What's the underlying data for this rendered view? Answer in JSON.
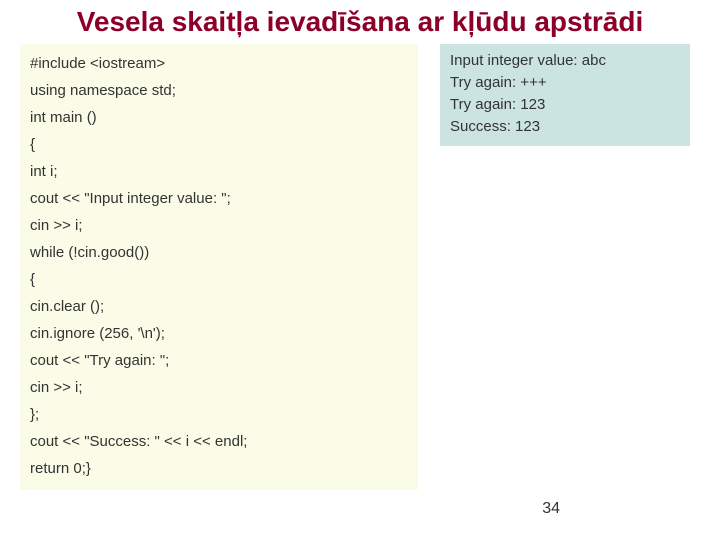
{
  "title": "Vesela skaitļa ievadīšana ar kļūdu apstrādi",
  "code": {
    "bg_color": "#fafce8",
    "text_color": "#333333",
    "font_size": 15,
    "line_height": 27,
    "lines": [
      "#include <iostream>",
      "using namespace std;",
      "int main ()",
      "{",
      "int i;",
      "cout << \"Input integer value: \";",
      "cin >> i;",
      "while (!cin.good())",
      "{",
      "cin.clear ();",
      "cin.ignore (256, '\\n');",
      "cout << \"Try again: \";",
      "cin >> i;",
      "};",
      "cout << \"Success: \" << i << endl;",
      "return 0;}"
    ]
  },
  "output": {
    "bg_color": "#cbe4e2",
    "text_color": "#333333",
    "font_size": 15,
    "line_height": 22,
    "lines": [
      "Input integer value: abc",
      "Try again: +++",
      "Try again: 123",
      "Success: 123"
    ]
  },
  "page_number": "34",
  "title_color": "#8c0028",
  "title_fontsize": 28,
  "background_color": "#ffffff"
}
